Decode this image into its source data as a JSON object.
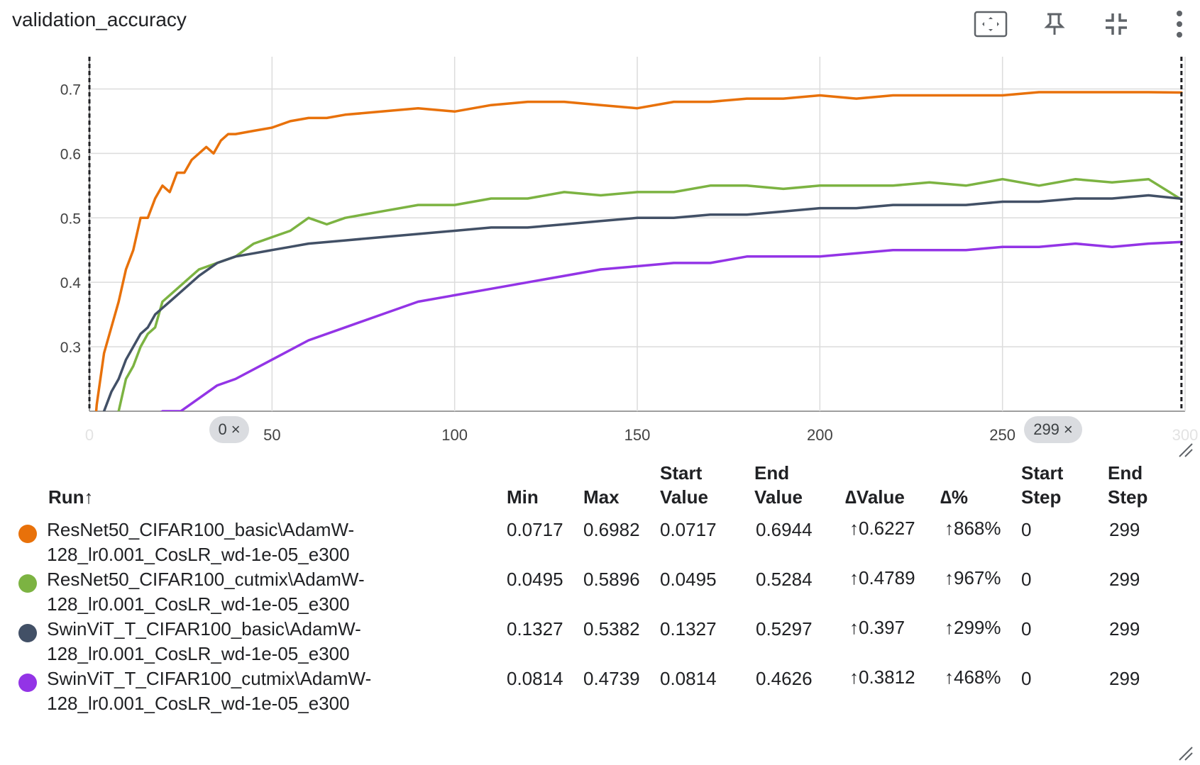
{
  "header": {
    "title": "validation_accuracy",
    "icons": [
      "fit-to-data-icon",
      "pin-icon",
      "collapse-icon",
      "more-vert-icon"
    ]
  },
  "chart_data": {
    "type": "line",
    "title": "validation_accuracy",
    "xlabel": "",
    "ylabel": "",
    "xlim": [
      0,
      300
    ],
    "ylim": [
      0.2,
      0.75
    ],
    "x_ticks": [
      0,
      50,
      100,
      150,
      200,
      250,
      300
    ],
    "y_ticks": [
      0.2,
      0.3,
      0.4,
      0.5,
      0.6,
      0.7
    ],
    "grid": true,
    "range_markers": [
      0,
      299
    ],
    "series": [
      {
        "name": "ResNet50_CIFAR100_basic\\AdamW-128_lr0.001_CosLR_wd-1e-05_e300",
        "color": "#e8710a",
        "x": [
          0,
          2,
          4,
          6,
          8,
          10,
          12,
          14,
          16,
          18,
          20,
          22,
          24,
          26,
          28,
          30,
          32,
          34,
          36,
          38,
          40,
          45,
          50,
          55,
          60,
          65,
          70,
          80,
          90,
          100,
          110,
          120,
          130,
          140,
          150,
          160,
          170,
          180,
          190,
          200,
          210,
          220,
          230,
          240,
          250,
          260,
          270,
          280,
          290,
          299
        ],
        "y": [
          0.0717,
          0.21,
          0.29,
          0.33,
          0.37,
          0.42,
          0.45,
          0.5,
          0.5,
          0.53,
          0.55,
          0.54,
          0.57,
          0.57,
          0.59,
          0.6,
          0.61,
          0.6,
          0.62,
          0.63,
          0.63,
          0.635,
          0.64,
          0.65,
          0.655,
          0.655,
          0.66,
          0.665,
          0.67,
          0.665,
          0.675,
          0.68,
          0.68,
          0.675,
          0.67,
          0.68,
          0.68,
          0.685,
          0.685,
          0.69,
          0.685,
          0.69,
          0.69,
          0.69,
          0.69,
          0.695,
          0.695,
          0.695,
          0.695,
          0.6944
        ]
      },
      {
        "name": "ResNet50_CIFAR100_cutmix\\AdamW-128_lr0.001_CosLR_wd-1e-05_e300",
        "color": "#7cb342",
        "x": [
          0,
          5,
          8,
          10,
          12,
          14,
          16,
          18,
          20,
          22,
          24,
          26,
          28,
          30,
          35,
          40,
          45,
          50,
          55,
          60,
          65,
          70,
          80,
          90,
          100,
          110,
          120,
          130,
          140,
          150,
          160,
          170,
          180,
          190,
          200,
          210,
          220,
          230,
          240,
          250,
          260,
          270,
          280,
          290,
          299
        ],
        "y": [
          0.0495,
          0.16,
          0.2,
          0.25,
          0.27,
          0.3,
          0.32,
          0.33,
          0.37,
          0.38,
          0.39,
          0.4,
          0.41,
          0.42,
          0.43,
          0.44,
          0.46,
          0.47,
          0.48,
          0.5,
          0.49,
          0.5,
          0.51,
          0.52,
          0.52,
          0.53,
          0.53,
          0.54,
          0.535,
          0.54,
          0.54,
          0.55,
          0.55,
          0.545,
          0.55,
          0.55,
          0.55,
          0.555,
          0.55,
          0.56,
          0.55,
          0.56,
          0.555,
          0.56,
          0.5284
        ]
      },
      {
        "name": "SwinViT_T_CIFAR100_basic\\AdamW-128_lr0.001_CosLR_wd-1e-05_e300",
        "color": "#425066",
        "x": [
          0,
          4,
          6,
          8,
          10,
          12,
          14,
          16,
          18,
          20,
          22,
          24,
          26,
          28,
          30,
          35,
          40,
          45,
          50,
          55,
          60,
          70,
          80,
          90,
          100,
          110,
          120,
          130,
          140,
          150,
          160,
          170,
          180,
          190,
          200,
          210,
          220,
          230,
          240,
          250,
          260,
          270,
          280,
          290,
          299
        ],
        "y": [
          0.1327,
          0.2,
          0.23,
          0.25,
          0.28,
          0.3,
          0.32,
          0.33,
          0.35,
          0.36,
          0.37,
          0.38,
          0.39,
          0.4,
          0.41,
          0.43,
          0.44,
          0.445,
          0.45,
          0.455,
          0.46,
          0.465,
          0.47,
          0.475,
          0.48,
          0.485,
          0.485,
          0.49,
          0.495,
          0.5,
          0.5,
          0.505,
          0.505,
          0.51,
          0.515,
          0.515,
          0.52,
          0.52,
          0.52,
          0.525,
          0.525,
          0.53,
          0.53,
          0.535,
          0.5297
        ]
      },
      {
        "name": "SwinViT_T_CIFAR100_cutmix\\AdamW-128_lr0.001_CosLR_wd-1e-05_e300",
        "color": "#9334e6",
        "x": [
          0,
          10,
          20,
          25,
          30,
          35,
          40,
          50,
          60,
          70,
          80,
          90,
          100,
          110,
          120,
          130,
          140,
          150,
          160,
          170,
          180,
          190,
          200,
          210,
          220,
          230,
          240,
          250,
          260,
          270,
          280,
          290,
          299
        ],
        "y": [
          0.0814,
          0.16,
          0.2,
          0.2,
          0.22,
          0.24,
          0.25,
          0.28,
          0.31,
          0.33,
          0.35,
          0.37,
          0.38,
          0.39,
          0.4,
          0.41,
          0.42,
          0.425,
          0.43,
          0.43,
          0.44,
          0.44,
          0.44,
          0.445,
          0.45,
          0.45,
          0.45,
          0.455,
          0.455,
          0.46,
          0.455,
          0.46,
          0.4626
        ]
      }
    ]
  },
  "x_markers": {
    "start_label": "0",
    "end_label": "299",
    "remove": "×"
  },
  "table": {
    "headers": {
      "run": "Run",
      "sort_arrow": "↑",
      "min": "Min",
      "max": "Max",
      "start_value_1": "Start",
      "start_value_2": "Value",
      "end_value_1": "End",
      "end_value_2": "Value",
      "delta_value": "∆Value",
      "delta_pct": "∆%",
      "start_step_1": "Start",
      "start_step_2": "Step",
      "end_step_1": "End",
      "end_step_2": "Step"
    },
    "rows": [
      {
        "color": "#e8710a",
        "name_line1": "ResNet50_CIFAR100_basic\\AdamW-",
        "name_line2": "128_lr0.001_CosLR_wd-1e-05_e300",
        "min": "0.0717",
        "max": "0.6982",
        "start_value": "0.0717",
        "end_value": "0.6944",
        "delta_value": "0.6227",
        "delta_pct": "868%",
        "start_step": "0",
        "end_step": "299"
      },
      {
        "color": "#7cb342",
        "name_line1": "ResNet50_CIFAR100_cutmix\\AdamW-",
        "name_line2": "128_lr0.001_CosLR_wd-1e-05_e300",
        "min": "0.0495",
        "max": "0.5896",
        "start_value": "0.0495",
        "end_value": "0.5284",
        "delta_value": "0.4789",
        "delta_pct": "967%",
        "start_step": "0",
        "end_step": "299"
      },
      {
        "color": "#425066",
        "name_line1": "SwinViT_T_CIFAR100_basic\\AdamW-",
        "name_line2": "128_lr0.001_CosLR_wd-1e-05_e300",
        "min": "0.1327",
        "max": "0.5382",
        "start_value": "0.1327",
        "end_value": "0.5297",
        "delta_value": "0.397",
        "delta_pct": "299%",
        "start_step": "0",
        "end_step": "299"
      },
      {
        "color": "#9334e6",
        "name_line1": "SwinViT_T_CIFAR100_cutmix\\AdamW-",
        "name_line2": "128_lr0.001_CosLR_wd-1e-05_e300",
        "min": "0.0814",
        "max": "0.4739",
        "start_value": "0.0814",
        "end_value": "0.4626",
        "delta_value": "0.3812",
        "delta_pct": "468%",
        "start_step": "0",
        "end_step": "299"
      }
    ],
    "up_arrow": "↑"
  }
}
